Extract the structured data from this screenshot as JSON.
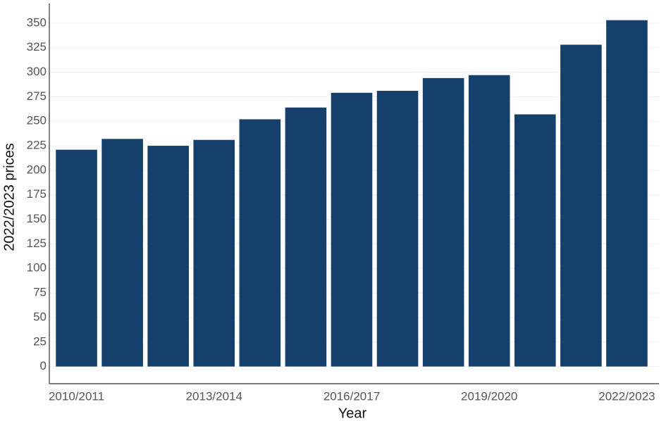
{
  "chart_data": {
    "type": "bar",
    "x_label": "Year",
    "y_label": "2022/2023 prices",
    "categories": [
      "2010/2011",
      null,
      null,
      "2013/2014",
      null,
      null,
      "2016/2017",
      null,
      null,
      "2019/2020",
      null,
      null,
      "2022/2023"
    ],
    "values": [
      221,
      232,
      225,
      231,
      252,
      264,
      279,
      281,
      294,
      297,
      257,
      328,
      353
    ],
    "color": "#14406b",
    "ylim": [
      -17.5,
      370
    ],
    "yticks": [
      0,
      25,
      50,
      75,
      100,
      125,
      150,
      175,
      200,
      225,
      250,
      275,
      300,
      325,
      350
    ],
    "grid": true
  }
}
